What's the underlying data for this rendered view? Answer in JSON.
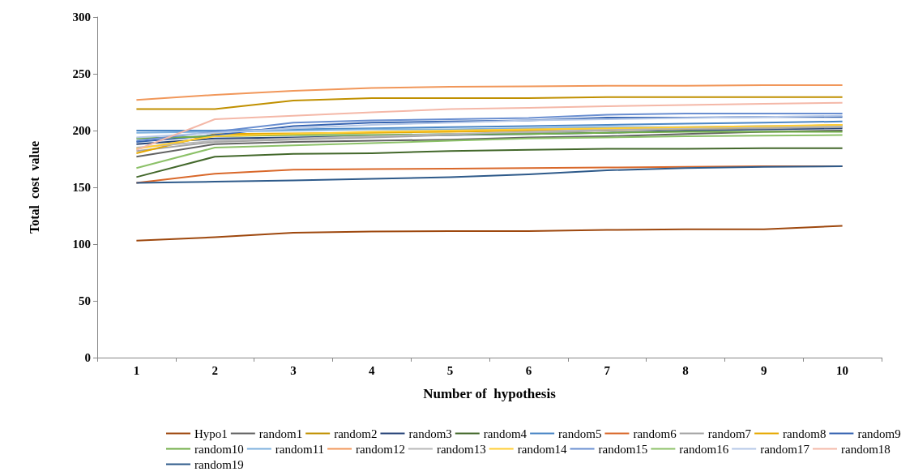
{
  "chart_data": {
    "type": "line",
    "xlabel": "Number of  hypothesis",
    "ylabel": "Total  cost  value",
    "categories": [
      "1",
      "2",
      "3",
      "4",
      "5",
      "6",
      "7",
      "8",
      "9",
      "10"
    ],
    "ylim": [
      0,
      300
    ],
    "yticks": [
      0,
      50,
      100,
      150,
      200,
      250,
      300
    ],
    "grid": false,
    "legend": "bottom",
    "marker": "none",
    "line_style": "solid",
    "series": [
      {
        "name": "Hypo1",
        "color": "#9e480e",
        "values": [
          103,
          106,
          110,
          111,
          111.5,
          111.5,
          112.5,
          113,
          113,
          116
        ]
      },
      {
        "name": "random1",
        "color": "#636363",
        "values": [
          177,
          188,
          190,
          191,
          192,
          194,
          195,
          197,
          199,
          200
        ]
      },
      {
        "name": "random2",
        "color": "#c09000",
        "values": [
          219,
          219,
          226.5,
          228.5,
          228.5,
          228.5,
          229.5,
          229.5,
          229.5,
          229.5
        ]
      },
      {
        "name": "random3",
        "color": "#264478",
        "values": [
          188,
          193,
          194,
          195,
          196,
          197,
          198,
          200,
          201,
          202
        ]
      },
      {
        "name": "random4",
        "color": "#43682b",
        "values": [
          159,
          177,
          179.5,
          180,
          182,
          183,
          184,
          184,
          184.5,
          184.5
        ]
      },
      {
        "name": "random5",
        "color": "#4a86c5",
        "values": [
          200,
          200,
          201,
          202,
          203,
          204,
          205,
          206,
          207,
          208
        ]
      },
      {
        "name": "random6",
        "color": "#d9682a",
        "values": [
          154,
          162,
          165.5,
          166,
          166.5,
          167,
          167.5,
          168,
          168.5,
          168.5
        ]
      },
      {
        "name": "random7",
        "color": "#a5a5a5",
        "values": [
          182,
          190,
          192,
          194,
          196,
          198,
          200,
          201,
          202,
          203
        ]
      },
      {
        "name": "random8",
        "color": "#e6a800",
        "values": [
          180,
          197,
          197.5,
          198,
          199,
          200,
          201,
          202,
          203,
          205
        ]
      },
      {
        "name": "random9",
        "color": "#3563b0",
        "values": [
          190,
          196,
          204,
          207,
          208,
          209,
          211.5,
          211.5,
          212,
          212
        ]
      },
      {
        "name": "random10",
        "color": "#70ad47",
        "values": [
          193,
          195,
          196,
          196,
          197,
          197,
          198,
          199,
          199,
          199
        ]
      },
      {
        "name": "random11",
        "color": "#7cafdd",
        "values": [
          198,
          199,
          200,
          201,
          201,
          202,
          203,
          203,
          204,
          204
        ]
      },
      {
        "name": "random12",
        "color": "#f1975a",
        "values": [
          227,
          231.5,
          235,
          237.5,
          238.5,
          239,
          239.5,
          239.5,
          240,
          240
        ]
      },
      {
        "name": "random13",
        "color": "#b7b7b7",
        "values": [
          185,
          191,
          193,
          195,
          197,
          199,
          201,
          202,
          203,
          204
        ]
      },
      {
        "name": "random14",
        "color": "#ffcd33",
        "values": [
          184,
          195,
          197,
          199,
          200,
          201,
          202,
          203,
          204,
          205
        ]
      },
      {
        "name": "random15",
        "color": "#698ed0",
        "values": [
          191,
          199,
          207,
          209,
          210,
          211,
          214,
          215,
          215,
          215
        ]
      },
      {
        "name": "random16",
        "color": "#8cc168",
        "values": [
          167,
          185,
          187,
          189,
          191,
          193,
          194,
          195,
          195.5,
          196
        ]
      },
      {
        "name": "random17",
        "color": "#b4c7e7",
        "values": [
          194,
          198,
          202,
          205,
          207,
          209,
          210,
          211,
          212,
          213
        ]
      },
      {
        "name": "random18",
        "color": "#f4b8a8",
        "values": [
          183,
          210,
          213,
          216,
          219,
          220,
          221.5,
          222.5,
          223.5,
          224.5
        ]
      },
      {
        "name": "random19",
        "color": "#2e5a8a",
        "values": [
          154,
          155,
          156,
          157.5,
          159,
          161.5,
          165,
          167,
          168,
          168.5
        ]
      }
    ]
  }
}
